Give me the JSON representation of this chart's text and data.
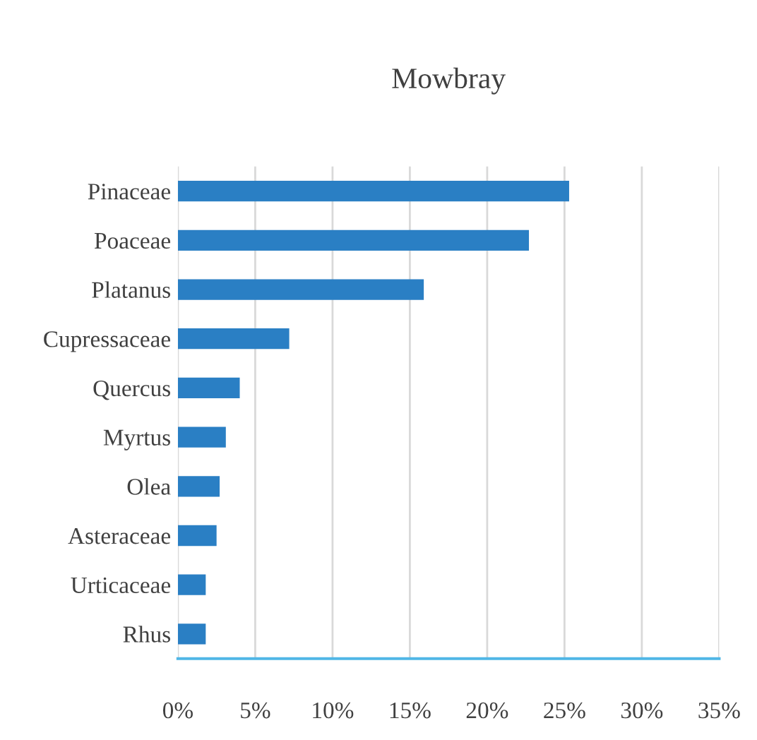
{
  "chart_data": {
    "type": "bar",
    "orientation": "horizontal",
    "title": "Mowbray",
    "categories": [
      "Pinaceae",
      "Poaceae",
      "Platanus",
      "Cupressaceae",
      "Quercus",
      "Myrtus",
      "Olea",
      "Asteraceae",
      "Urticaceae",
      "Rhus"
    ],
    "values": [
      25.3,
      22.7,
      15.9,
      7.2,
      4.0,
      3.1,
      2.7,
      2.5,
      1.8,
      1.8
    ],
    "color": "#2a7fc4",
    "xlim": [
      0,
      35
    ],
    "xticks": [
      {
        "value": 0,
        "label": "0%"
      },
      {
        "value": 5,
        "label": "5%"
      },
      {
        "value": 10,
        "label": "10%"
      },
      {
        "value": 15,
        "label": "15%"
      },
      {
        "value": 20,
        "label": "20%"
      },
      {
        "value": 25,
        "label": "25%"
      },
      {
        "value": 30,
        "label": "30%"
      },
      {
        "value": 35,
        "label": "35%"
      }
    ],
    "grid": "x",
    "legend": false
  }
}
